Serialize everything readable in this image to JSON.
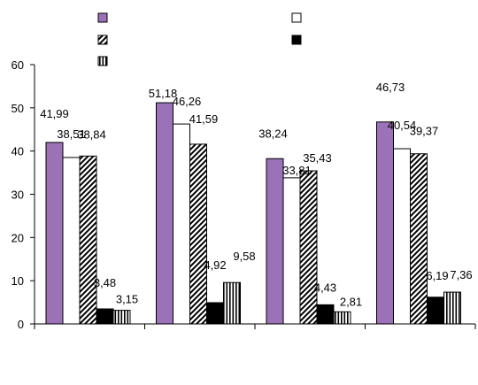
{
  "chart_data": {
    "type": "bar",
    "title": "",
    "xlabel": "",
    "ylabel": "",
    "categories": [
      "",
      "",
      "",
      ""
    ],
    "ylim": [
      0,
      60
    ],
    "yticks": [
      0,
      10,
      20,
      30,
      40,
      50,
      60
    ],
    "grid": false,
    "legend_position": "top",
    "series": [
      {
        "values": [
          41.99,
          51.18,
          38.24,
          46.73
        ],
        "labels": [
          "41,99",
          "51,18",
          "38,24",
          "46,73"
        ],
        "fill": "solid",
        "color": "#9b72b8"
      },
      {
        "values": [
          38.51,
          46.26,
          33.81,
          40.54
        ],
        "labels": [
          "38,51",
          "46,26",
          "33,81",
          "40,54"
        ],
        "fill": "solid",
        "color": "#ffffff"
      },
      {
        "values": [
          38.84,
          41.59,
          35.43,
          39.37
        ],
        "labels": [
          "38,84",
          "41,59",
          "35,43",
          "39,37"
        ],
        "fill": "diagonal-hatch",
        "color": "#000000"
      },
      {
        "values": [
          3.48,
          4.92,
          4.43,
          6.19
        ],
        "labels": [
          "3,48",
          "4,92",
          "4,43",
          "6,19"
        ],
        "fill": "solid",
        "color": "#000000"
      },
      {
        "values": [
          3.15,
          9.58,
          2.81,
          7.36
        ],
        "labels": [
          "3,15",
          "9,58",
          "2,81",
          "7,36"
        ],
        "fill": "vertical-stripes",
        "color": "#000000"
      }
    ]
  }
}
